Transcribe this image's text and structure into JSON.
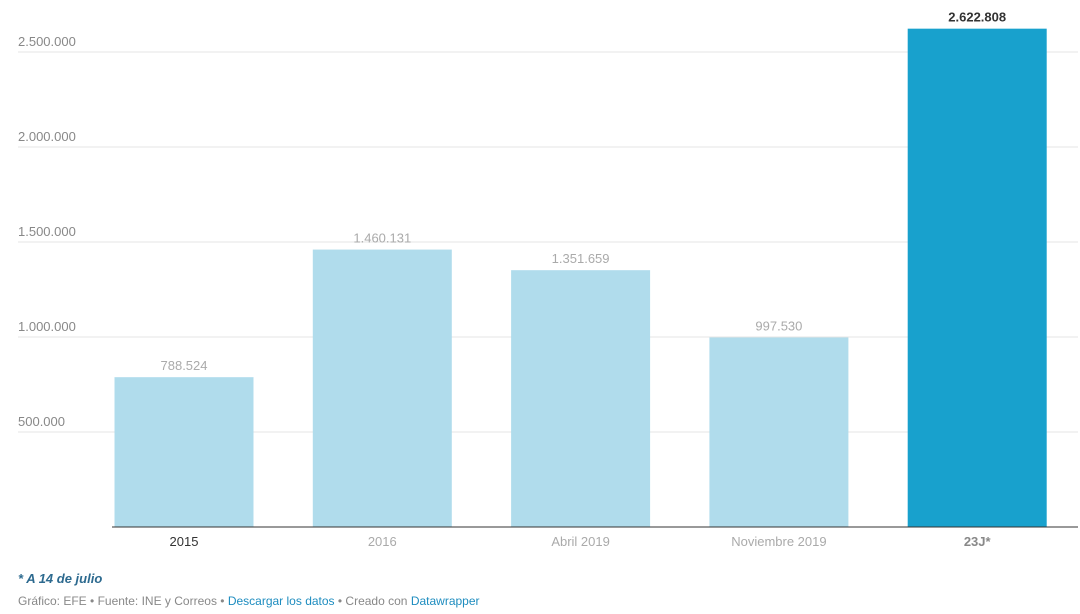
{
  "chart_data": {
    "type": "bar",
    "categories": [
      "2015",
      "2016",
      "Abril 2019",
      "Noviembre 2019",
      "23J*"
    ],
    "values": [
      788524,
      1460131,
      1351659,
      997530,
      2622808
    ],
    "value_labels": [
      "788.524",
      "1.460.131",
      "1.351.659",
      "997.530",
      "2.622.808"
    ],
    "highlight_index": 4,
    "ylim": [
      0,
      2650000
    ],
    "yticks": [
      500000,
      1000000,
      1500000,
      2000000,
      2500000
    ],
    "ytick_labels": [
      "500.000",
      "1.000.000",
      "1.500.000",
      "2.000.000",
      "2.500.000"
    ],
    "grid": true,
    "colors": {
      "bar": "#b0dcec",
      "highlight": "#18a1cd",
      "grid": "#e5e5e5",
      "axis": "#333333"
    }
  },
  "note": "* A 14 de julio",
  "footer": {
    "grafico": "Gráfico: EFE",
    "fuente": "Fuente: INE y Correos",
    "descargar": "Descargar los datos",
    "creado": "Creado con",
    "datawrapper": "Datawrapper",
    "sep": " • "
  }
}
